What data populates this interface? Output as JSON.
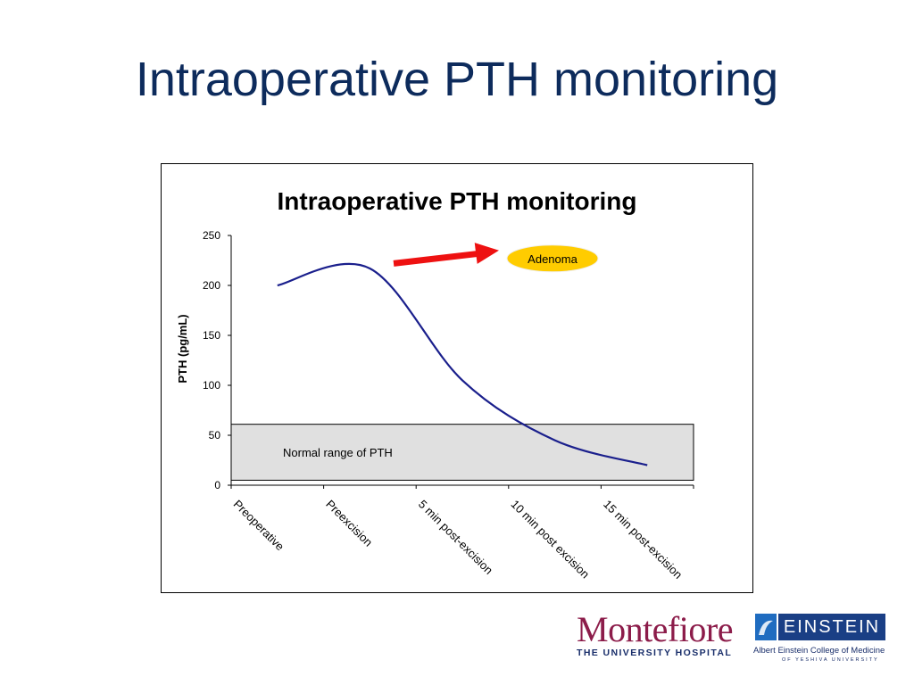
{
  "slide": {
    "title": "Intraoperative PTH monitoring"
  },
  "chart_data": {
    "type": "line",
    "title": "Intraoperative PTH monitoring",
    "xlabel": "",
    "ylabel": "PTH (pg/mL)",
    "categories": [
      "Preoperative",
      "Preexcision",
      "5 min post-excision",
      "10 min post excision",
      "15 min post-excision"
    ],
    "series": [
      {
        "values": [
          200,
          217,
          105,
          45,
          20
        ],
        "color": "#1a1f8c"
      }
    ],
    "ylim": [
      0,
      250
    ],
    "yticks": [
      0,
      50,
      100,
      150,
      200,
      250
    ],
    "grid": false,
    "legend": "none",
    "normal_range": {
      "label": "Normal range of PTH",
      "min": 5,
      "max": 61
    },
    "annotation": {
      "label": "Adenoma",
      "color": "#ffcc00",
      "arrow_color": "#ee1111"
    }
  },
  "logos": {
    "montefiore": {
      "name": "Montefiore",
      "subtitle": "THE UNIVERSITY HOSPITAL"
    },
    "einstein": {
      "name": "EINSTEIN",
      "subtitle": "Albert Einstein College of Medicine",
      "subtitle2": "OF YESHIVA UNIVERSITY"
    }
  }
}
